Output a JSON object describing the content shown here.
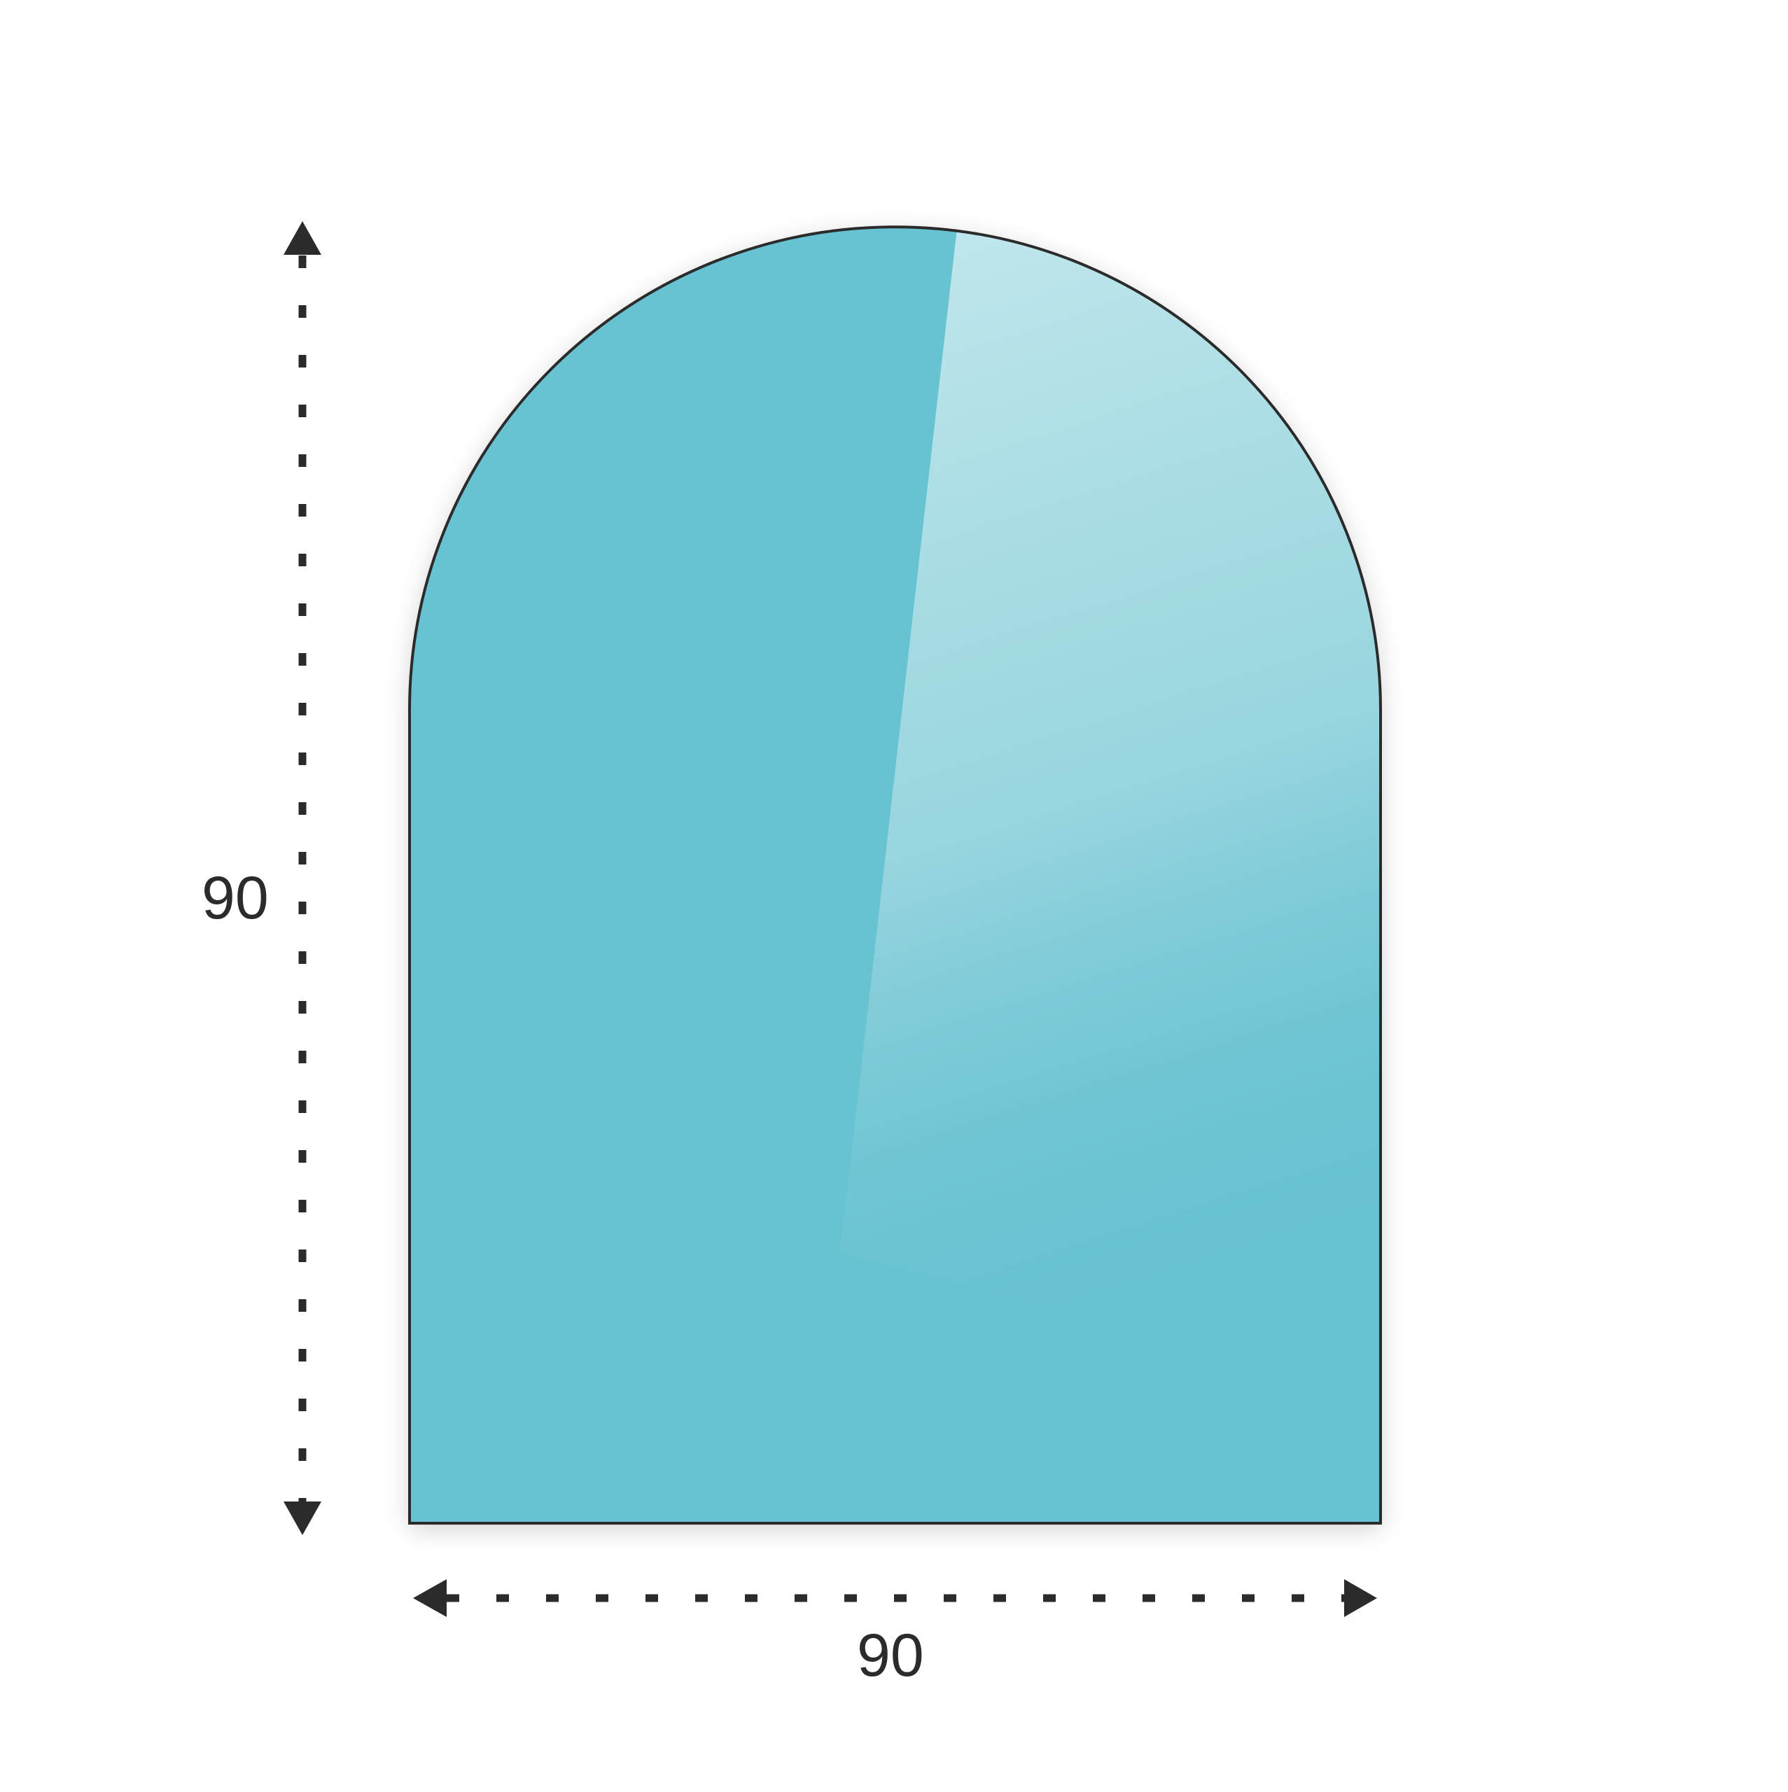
{
  "dimensions": {
    "height_label": "90",
    "width_label": "90"
  },
  "colors": {
    "glass_fill": "#67c2d1",
    "highlight": "#c4e8ed",
    "outline": "#2b2b2b",
    "arrows": "#2b2b2b"
  },
  "shape": "arched-top rectangle (glass plate)"
}
